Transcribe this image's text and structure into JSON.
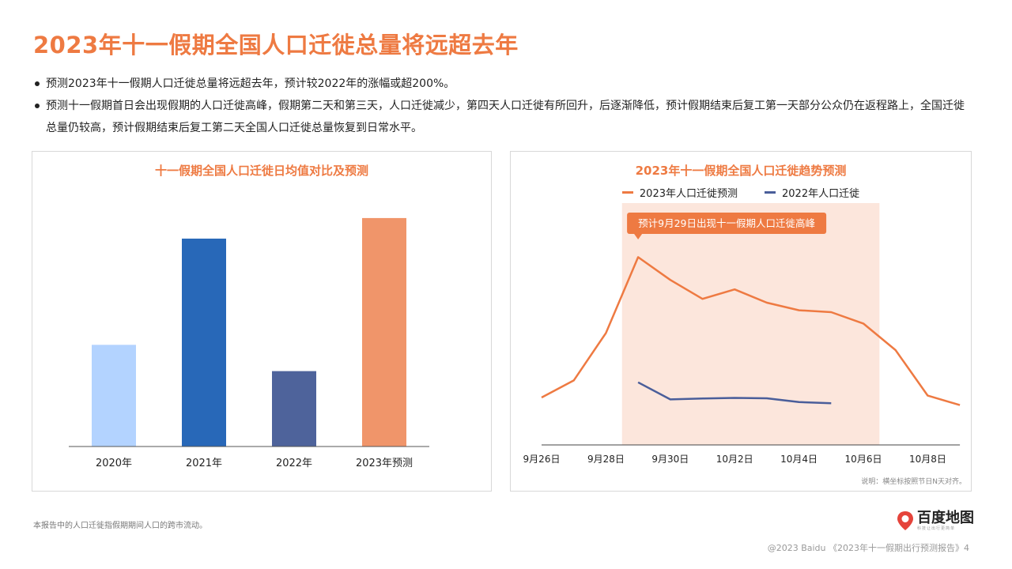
{
  "header": {
    "title": "2023年十一假期全国人口迁徙总量将远超去年"
  },
  "bullets": [
    "预测2023年十一假期人口迁徙总量将远超去年，预计较2022年的涨幅或超200%。",
    "预测十一假期首日会出现假期的人口迁徙高峰，假期第二天和第三天，人口迁徙减少，第四天人口迁徙有所回升，后逐渐降低，预计假期结束后复工第一天部分公众仍在返程路上，全国迁徙总量仍较高，预计假期结束后复工第二天全国人口迁徙总量恢复到日常水平。"
  ],
  "footer": {
    "note": "本报告中的人口迁徙指假期期间人口的跨市流动。",
    "copyright": "@2023 Baidu 《2023年十一假期出行预测报告》4",
    "logo_text": "百度地图",
    "logo_sub": "科技让出行更简单"
  },
  "colors": {
    "accent": "#EE7A42",
    "line_2023": "#EE7A42",
    "line_2022": "#4A5E9A",
    "highlight": "#FCE6DC"
  },
  "chart_data": [
    {
      "type": "bar",
      "title": "十一假期全国人口迁徙日均值对比及预测",
      "categories": [
        "2020年",
        "2021年",
        "2022年",
        "2023年预测"
      ],
      "values": [
        0.445,
        0.91,
        0.33,
        1.0
      ],
      "colors": [
        "#B3D3FF",
        "#2868B8",
        "#4E639B",
        "#F0956A"
      ],
      "ylim": [
        0,
        1.1
      ],
      "axes_visible": false
    },
    {
      "type": "line",
      "title": "2023年十一假期全国人口迁徙趋势预测",
      "x": [
        "9月26日",
        "9月27日",
        "9月28日",
        "9月29日",
        "9月30日",
        "10月1日",
        "10月2日",
        "10月3日",
        "10月4日",
        "10月5日",
        "10月6日",
        "10月7日",
        "10月8日",
        "10月9日"
      ],
      "x_tick_labels": [
        "9月26日",
        "9月28日",
        "9月30日",
        "10月2日",
        "10月4日",
        "10月6日",
        "10月8日"
      ],
      "series": [
        {
          "name": "2023年人口迁徙预测",
          "values": [
            0.25,
            0.34,
            0.59,
            0.99,
            0.87,
            0.77,
            0.82,
            0.75,
            0.71,
            0.7,
            0.64,
            0.5,
            0.26,
            0.21
          ]
        },
        {
          "name": "2022年人口迁徙",
          "values": [
            null,
            null,
            null,
            0.33,
            0.24,
            0.245,
            0.248,
            0.246,
            0.226,
            0.22,
            null,
            null,
            null,
            null
          ]
        }
      ],
      "highlight_range": [
        "9月28日",
        "10月6日"
      ],
      "annotation": "预计9月29日出现十一假期人口迁徙高峰",
      "legend": "top-center",
      "note": "说明：横坐标按照节日N天对齐。",
      "ylim": [
        0,
        1.15
      ],
      "y_axis_visible": false
    }
  ]
}
